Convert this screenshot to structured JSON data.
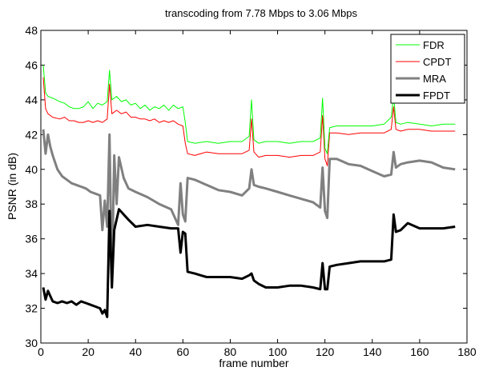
{
  "chart_data": {
    "type": "line",
    "title": "transcoding from 7.78 Mbps to 3.06 Mbps",
    "xlabel": "frame number",
    "ylabel": "PSNR (in dB)",
    "xlim": [
      0,
      180
    ],
    "ylim": [
      30,
      48
    ],
    "xticks": [
      "0",
      "20",
      "40",
      "60",
      "80",
      "100",
      "120",
      "140",
      "160",
      "180"
    ],
    "yticks": [
      "30",
      "32",
      "34",
      "36",
      "38",
      "40",
      "42",
      "44",
      "46",
      "48"
    ],
    "legend_position": "top-right",
    "grid": false,
    "series": [
      {
        "name": "FDR",
        "color": "#00ff00",
        "x": [
          1,
          2,
          3,
          5,
          8,
          10,
          12,
          14,
          16,
          18,
          20,
          22,
          24,
          26,
          28,
          29,
          30,
          32,
          34,
          36,
          38,
          40,
          42,
          44,
          46,
          48,
          50,
          52,
          54,
          56,
          58,
          60,
          61,
          62,
          65,
          70,
          75,
          80,
          85,
          88,
          89,
          90,
          92,
          95,
          100,
          105,
          110,
          115,
          118,
          119,
          120,
          121,
          122,
          125,
          130,
          135,
          140,
          145,
          148,
          149,
          150,
          152,
          155,
          160,
          165,
          170,
          175
        ],
        "y": [
          46,
          44.4,
          44.2,
          44.1,
          43.9,
          43.8,
          43.6,
          43.5,
          43.5,
          43.6,
          43.9,
          43.5,
          43.8,
          43.7,
          43.9,
          45.7,
          44,
          44.2,
          43.9,
          44,
          43.7,
          43.8,
          43.5,
          43.7,
          43.4,
          43.6,
          43.5,
          43.7,
          43.4,
          43.7,
          43.5,
          43.6,
          42.7,
          41.6,
          41.5,
          41.6,
          41.5,
          41.6,
          41.6,
          41.9,
          44,
          41.7,
          41.5,
          41.6,
          41.6,
          41.5,
          41.6,
          41.6,
          41.8,
          44.1,
          41.2,
          40.9,
          42.4,
          42.5,
          42.5,
          42.5,
          42.5,
          42.6,
          43,
          44.2,
          42.7,
          42.6,
          42.7,
          42.6,
          42.5,
          42.6,
          42.6
        ]
      },
      {
        "name": "CPDT",
        "color": "#ff0000",
        "x": [
          1,
          2,
          3,
          5,
          8,
          10,
          12,
          14,
          16,
          18,
          20,
          22,
          24,
          26,
          28,
          29,
          30,
          32,
          34,
          36,
          38,
          40,
          42,
          44,
          46,
          48,
          50,
          52,
          54,
          56,
          58,
          60,
          61,
          62,
          65,
          70,
          75,
          80,
          85,
          88,
          89,
          90,
          92,
          95,
          100,
          105,
          110,
          115,
          118,
          119,
          120,
          121,
          122,
          125,
          130,
          135,
          140,
          145,
          148,
          149,
          150,
          152,
          155,
          160,
          165,
          170,
          175
        ],
        "y": [
          45.3,
          43.5,
          43.2,
          43,
          42.9,
          43,
          42.8,
          42.8,
          42.7,
          42.7,
          42.8,
          42.7,
          42.8,
          42.7,
          42.9,
          44.9,
          43.2,
          43.4,
          43.2,
          43.3,
          43,
          43,
          42.9,
          42.9,
          42.8,
          42.9,
          42.7,
          42.8,
          42.7,
          42.8,
          42.6,
          42.5,
          41.5,
          40.9,
          40.8,
          41,
          40.9,
          40.9,
          40.9,
          41.1,
          42.9,
          41,
          40.7,
          40.8,
          40.8,
          40.7,
          40.8,
          40.8,
          41,
          43.1,
          40.6,
          40.2,
          42.1,
          42.1,
          42,
          42.1,
          42.1,
          42.1,
          42.3,
          43.6,
          42.3,
          42.2,
          42.3,
          42.3,
          42.2,
          42.2,
          42.2
        ]
      },
      {
        "name": "MRA",
        "color": "#808080",
        "x": [
          1,
          2,
          3,
          4,
          5,
          7,
          9,
          11,
          13,
          15,
          17,
          19,
          21,
          23,
          25,
          26,
          27,
          28,
          29,
          30,
          31,
          32,
          33,
          35,
          37,
          40,
          45,
          50,
          55,
          58,
          59,
          60,
          61,
          62,
          65,
          70,
          75,
          80,
          85,
          88,
          89,
          90,
          92,
          95,
          100,
          105,
          110,
          115,
          118,
          119,
          120,
          121,
          122,
          125,
          130,
          135,
          140,
          145,
          148,
          149,
          150,
          152,
          155,
          160,
          165,
          170,
          175
        ],
        "y": [
          42.3,
          40.9,
          42,
          41.3,
          40.8,
          40,
          39.6,
          39.4,
          39.2,
          39.1,
          39,
          38.9,
          38.7,
          38.6,
          38.5,
          36.5,
          38.2,
          36.7,
          42,
          33.5,
          40.8,
          38,
          40.7,
          39.5,
          38.9,
          38.7,
          38.4,
          38,
          37.7,
          36.8,
          39.2,
          37.4,
          37,
          39.5,
          39.4,
          39.1,
          38.8,
          38.7,
          38.5,
          38.9,
          40,
          39.1,
          39,
          38.9,
          38.7,
          38.5,
          38.3,
          38.1,
          37.8,
          40.1,
          37.6,
          37.2,
          40.6,
          40.6,
          40.3,
          40.2,
          39.9,
          39.6,
          39.7,
          41,
          40.1,
          40.3,
          40.4,
          40.5,
          40.4,
          40.1,
          40
        ]
      },
      {
        "name": "FPDT",
        "color": "#000000",
        "x": [
          1,
          2,
          3,
          4,
          5,
          7,
          9,
          11,
          13,
          15,
          17,
          19,
          21,
          23,
          25,
          26,
          27,
          28,
          29,
          30,
          31,
          33,
          35,
          37,
          40,
          45,
          50,
          55,
          58,
          59,
          60,
          61,
          62,
          65,
          70,
          75,
          80,
          85,
          88,
          89,
          90,
          92,
          95,
          100,
          105,
          110,
          115,
          118,
          119,
          120,
          121,
          122,
          125,
          130,
          135,
          140,
          145,
          148,
          149,
          150,
          152,
          155,
          160,
          165,
          170,
          175
        ],
        "y": [
          33.2,
          32.5,
          33,
          32.7,
          32.4,
          32.3,
          32.4,
          32.3,
          32.4,
          32.2,
          32.4,
          32.3,
          32.2,
          32.1,
          32,
          31.7,
          31.9,
          31.5,
          37.6,
          33.2,
          36.5,
          37.7,
          37.4,
          37.1,
          36.7,
          36.8,
          36.7,
          36.6,
          36.6,
          35.2,
          36.4,
          36.3,
          34.1,
          34,
          33.8,
          33.8,
          33.8,
          33.7,
          33.9,
          34,
          33.6,
          33.4,
          33.2,
          33.2,
          33.3,
          33.3,
          33.2,
          33.1,
          34.6,
          33.1,
          33.1,
          34.4,
          34.5,
          34.6,
          34.7,
          34.7,
          34.7,
          34.8,
          37.4,
          36.4,
          36.5,
          36.9,
          36.6,
          36.6,
          36.6,
          36.7
        ]
      }
    ]
  }
}
